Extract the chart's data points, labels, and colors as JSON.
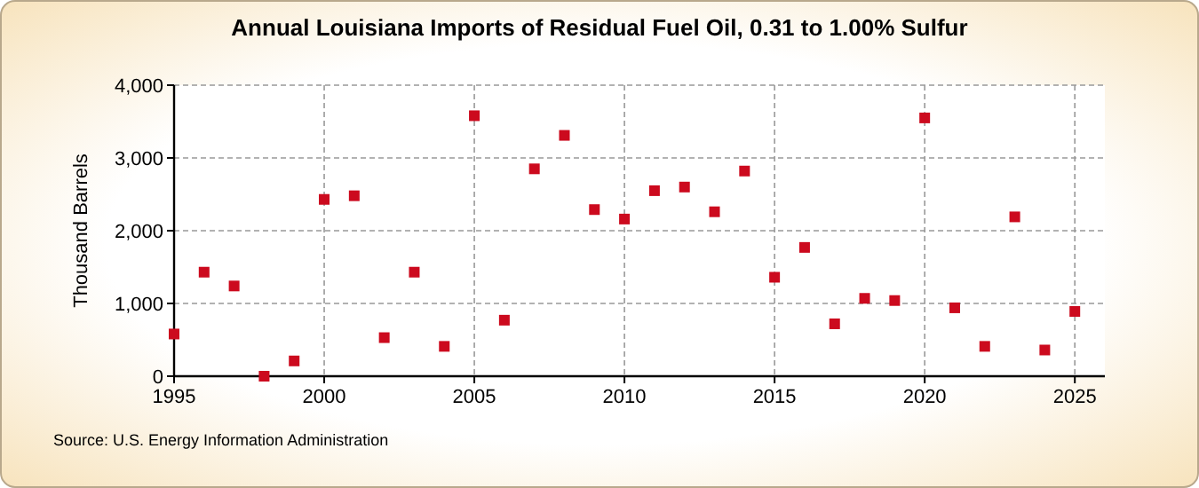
{
  "chart_data": {
    "type": "scatter",
    "title": "Annual Louisiana Imports of Residual Fuel Oil, 0.31 to 1.00% Sulfur",
    "ylabel": "Thousand Barrels",
    "annotations": [
      "Source: U.S. Energy Information Administration"
    ],
    "x": [
      1995,
      1996,
      1997,
      1998,
      1999,
      2000,
      2001,
      2002,
      2003,
      2004,
      2005,
      2006,
      2007,
      2008,
      2009,
      2010,
      2011,
      2012,
      2013,
      2014,
      2015,
      2016,
      2017,
      2018,
      2019,
      2020,
      2021,
      2022,
      2023,
      2024,
      2025
    ],
    "series": [
      {
        "color": "#cc0a1e",
        "values": [
          580,
          1430,
          1240,
          0,
          210,
          2430,
          2480,
          530,
          1430,
          410,
          3580,
          770,
          2850,
          3310,
          2290,
          2160,
          2550,
          2600,
          2260,
          2820,
          1360,
          1770,
          720,
          1070,
          1040,
          3550,
          940,
          410,
          2190,
          360,
          890
        ]
      }
    ],
    "xlim": [
      1995,
      2026
    ],
    "xticks": [
      1995,
      2000,
      2005,
      2010,
      2015,
      2020,
      2025
    ],
    "ylim": [
      0,
      4000
    ],
    "yticks": [
      {
        "value": 0,
        "label": "0"
      },
      {
        "value": 1000,
        "label": "1,000"
      },
      {
        "value": 2000,
        "label": "2,000"
      },
      {
        "value": 3000,
        "label": "3,000"
      },
      {
        "value": 4000,
        "label": "4,000"
      }
    ],
    "grid": true,
    "marker": "square"
  }
}
